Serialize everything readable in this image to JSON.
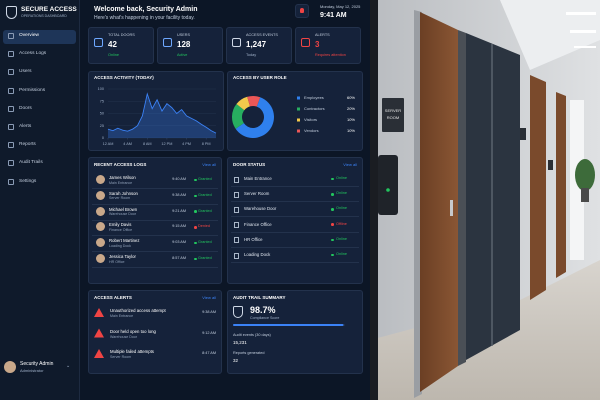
{
  "sidebar": {
    "brand": "SECURE ACCESS",
    "tagline": "OPERATIONS DASHBOARD",
    "nav": [
      "Overview",
      "Access Logs",
      "Users",
      "Permissions",
      "Doors",
      "Alerts",
      "Reports",
      "Audit Trails",
      "Settings"
    ],
    "user": {
      "name": "Security Admin",
      "role": "Administrator"
    }
  },
  "header": {
    "title": "Welcome back, Security Admin",
    "subtitle": "Here's what's happening in your facility today.",
    "date": "Monday, May 12, 2025",
    "time": "9:41 AM"
  },
  "stats": [
    {
      "label": "TOTAL DOORS",
      "value": "42",
      "status": "Online",
      "color": "#22c55e"
    },
    {
      "label": "USERS",
      "value": "128",
      "status": "Active",
      "color": "#22c55e"
    },
    {
      "label": "ACCESS EVENTS",
      "value": "1,247",
      "status": "Today",
      "color": "#9fb0c8"
    },
    {
      "label": "ALERTS",
      "value": "3",
      "status": "Requires attention",
      "color": "#ef4444"
    }
  ],
  "chart_data": [
    {
      "type": "area",
      "title": "ACCESS ACTIVITY (TODAY)",
      "color": "#3b82f6",
      "x": [
        0,
        1,
        2,
        3,
        4,
        5,
        6,
        7,
        8,
        9,
        10,
        11,
        12,
        13,
        14,
        15,
        16,
        17,
        18,
        19,
        20,
        21,
        22
      ],
      "values": [
        18,
        15,
        20,
        16,
        14,
        18,
        25,
        45,
        90,
        60,
        78,
        55,
        70,
        62,
        50,
        58,
        45,
        40,
        35,
        28,
        22,
        15,
        10
      ],
      "xlim": [
        0,
        22
      ],
      "xticks": [
        {
          "value": 0,
          "label": "12 AM"
        },
        {
          "value": 4,
          "label": "4 AM"
        },
        {
          "value": 8,
          "label": "8 AM"
        },
        {
          "value": 12,
          "label": "12 PM"
        },
        {
          "value": 16,
          "label": "4 PM"
        },
        {
          "value": 20,
          "label": "8 PM"
        }
      ],
      "ylim": [
        0,
        100
      ],
      "yticks": [
        0,
        25,
        50,
        75,
        100
      ],
      "grid": true
    },
    {
      "type": "donut",
      "title": "ACCESS BY USER ROLE",
      "categories": [
        "Employees",
        "Contractors",
        "Visitors",
        "Vendors"
      ],
      "values": [
        60,
        20,
        10,
        10
      ],
      "value_labels": [
        "60%",
        "20%",
        "10%",
        "10%"
      ],
      "colors": [
        "#2f80ed",
        "#27ae60",
        "#f2c94c",
        "#eb5757"
      ]
    }
  ],
  "access_logs": {
    "title": "RECENT ACCESS LOGS",
    "link": "View all",
    "rows": [
      {
        "name": "James Wilson",
        "location": "Main Entrance",
        "time": "9:40 AM",
        "status": "Granted",
        "color": "#22c55e"
      },
      {
        "name": "Sarah Johnson",
        "location": "Server Room",
        "time": "9:38 AM",
        "status": "Granted",
        "color": "#22c55e"
      },
      {
        "name": "Michael Brown",
        "location": "Warehouse Door",
        "time": "9:21 AM",
        "status": "Granted",
        "color": "#22c55e"
      },
      {
        "name": "Emily Davis",
        "location": "Finance Office",
        "time": "9:15 AM",
        "status": "Denied",
        "color": "#ef4444"
      },
      {
        "name": "Robert Martinez",
        "location": "Loading Dock",
        "time": "9:03 AM",
        "status": "Granted",
        "color": "#22c55e"
      },
      {
        "name": "Jessica Taylor",
        "location": "HR Office",
        "time": "8:57 AM",
        "status": "Granted",
        "color": "#22c55e"
      }
    ]
  },
  "door_status": {
    "title": "DOOR STATUS",
    "link": "View all",
    "rows": [
      {
        "name": "Main Entrance",
        "status": "Online",
        "color": "#22c55e"
      },
      {
        "name": "Server Room",
        "status": "Online",
        "color": "#22c55e"
      },
      {
        "name": "Warehouse Door",
        "status": "Online",
        "color": "#22c55e"
      },
      {
        "name": "Finance Office",
        "status": "Offline",
        "color": "#ef4444"
      },
      {
        "name": "HR Office",
        "status": "Online",
        "color": "#22c55e"
      },
      {
        "name": "Loading Dock",
        "status": "Online",
        "color": "#22c55e"
      }
    ]
  },
  "alerts": {
    "title": "ACCESS ALERTS",
    "link": "View all",
    "rows": [
      {
        "title": "Unauthorized access attempt",
        "location": "Main Entrance",
        "time": "9:38 AM"
      },
      {
        "title": "Door held open too long",
        "location": "Warehouse Door",
        "time": "9:12 AM"
      },
      {
        "title": "Multiple failed attempts",
        "location": "Server Room",
        "time": "8:47 AM"
      }
    ]
  },
  "audit": {
    "title": "AUDIT TRAIL SUMMARY",
    "score": {
      "value": 98.7,
      "label": "98.7%"
    },
    "score_label": "Compliance Score",
    "events_label": "Audit events (30 days)",
    "events": "15,231",
    "reports_label": "Reports generated",
    "reports": "32"
  },
  "photo": {
    "sign": [
      "SERVER",
      "ROOM"
    ]
  }
}
